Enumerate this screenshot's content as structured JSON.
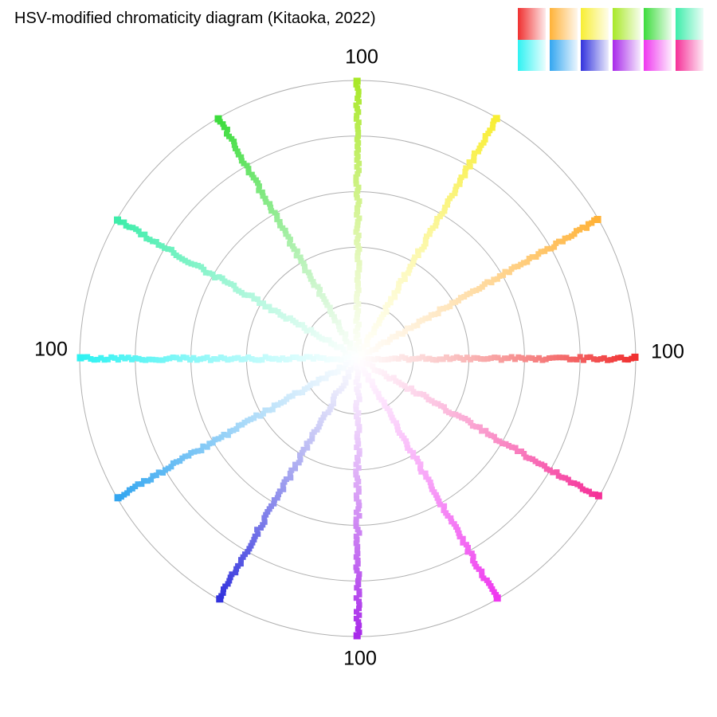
{
  "title": "HSV-modified chromaticity diagram (Kitaoka, 2022)",
  "colors": {
    "background": "#ffffff",
    "grid": "#b0b0b0",
    "text": "#000000",
    "center": "#ffffff"
  },
  "chart_data": {
    "type": "scatter",
    "title": "HSV-modified chromaticity diagram (Kitaoka, 2022)",
    "layout": "polar",
    "grid": true,
    "radial_axis": {
      "max": 100,
      "max_label": "100",
      "gridline_values": [
        20,
        40,
        60,
        80,
        100
      ]
    },
    "angular_axis": {
      "unit": "degrees",
      "ray_spacing_deg": 30
    },
    "axis_labels": {
      "top": "100",
      "right": "100",
      "bottom": "100",
      "left": "100"
    },
    "rays": [
      {
        "angle_deg": 0,
        "hue": "red",
        "color": "#f03030",
        "radius": 100
      },
      {
        "angle_deg": 30,
        "hue": "orange",
        "color": "#ffb237",
        "radius": 100
      },
      {
        "angle_deg": 60,
        "hue": "yellow",
        "color": "#f8ee33",
        "radius": 100
      },
      {
        "angle_deg": 90,
        "hue": "chartreuse",
        "color": "#a8e828",
        "radius": 100
      },
      {
        "angle_deg": 120,
        "hue": "green",
        "color": "#3cdc3c",
        "radius": 100
      },
      {
        "angle_deg": 150,
        "hue": "spring-green",
        "color": "#3dedaa",
        "radius": 100
      },
      {
        "angle_deg": 180,
        "hue": "cyan",
        "color": "#2ff2f2",
        "radius": 100
      },
      {
        "angle_deg": 210,
        "hue": "azure",
        "color": "#33a6f0",
        "radius": 100
      },
      {
        "angle_deg": 240,
        "hue": "blue",
        "color": "#3232dd",
        "radius": 100
      },
      {
        "angle_deg": 270,
        "hue": "violet",
        "color": "#a829ea",
        "radius": 100
      },
      {
        "angle_deg": 300,
        "hue": "magenta",
        "color": "#ef37ef",
        "radius": 100
      },
      {
        "angle_deg": 330,
        "hue": "rose",
        "color": "#f53098",
        "radius": 100
      }
    ]
  },
  "legend": {
    "rows": 2,
    "columns": 6,
    "swatches": [
      {
        "name": "red",
        "color": "#f03030"
      },
      {
        "name": "orange",
        "color": "#ffb237"
      },
      {
        "name": "yellow",
        "color": "#f8ee33"
      },
      {
        "name": "chartreuse",
        "color": "#a8e828"
      },
      {
        "name": "green",
        "color": "#3cdc3c"
      },
      {
        "name": "spring-green",
        "color": "#3dedaa"
      },
      {
        "name": "cyan",
        "color": "#2ff2f2"
      },
      {
        "name": "azure",
        "color": "#33a6f0"
      },
      {
        "name": "blue",
        "color": "#3232dd"
      },
      {
        "name": "violet",
        "color": "#a829ea"
      },
      {
        "name": "magenta",
        "color": "#ef37ef"
      },
      {
        "name": "rose",
        "color": "#f53098"
      }
    ]
  }
}
